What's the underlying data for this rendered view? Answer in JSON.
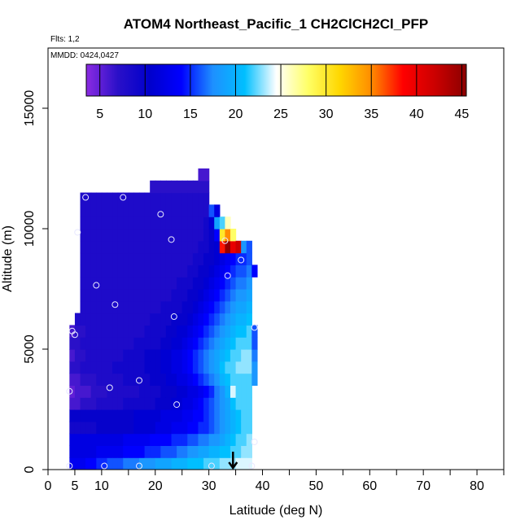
{
  "chart_data": {
    "type": "heatmap",
    "title": "ATOM4 Northeast_Pacific_1 CH2ClCH2Cl_PFP",
    "flights_note": "Flts: 1,2",
    "date_note": "MMDD: 0424,0427",
    "xlabel": "Latitude (deg N)",
    "ylabel": "Altitude (m)",
    "xlim": [
      0,
      85
    ],
    "ylim": [
      0,
      17500
    ],
    "x_ticks": [
      0,
      5,
      10,
      20,
      30,
      40,
      50,
      60,
      70,
      80
    ],
    "x_minor_ticks": [
      15,
      25,
      35,
      45,
      55,
      65,
      75,
      85
    ],
    "y_ticks": [
      0,
      5000,
      10000,
      15000
    ],
    "colorbar": {
      "range": [
        3.5,
        45.5
      ],
      "ticks": [
        5,
        10,
        15,
        20,
        25,
        30,
        35,
        40,
        45
      ],
      "stops": [
        "#8B2BE2",
        "#2A10C8",
        "#0000CC",
        "#0000FF",
        "#1E90FF",
        "#00BFFF",
        "#FFFFFF",
        "#FFFF66",
        "#FFD700",
        "#FF8C00",
        "#FF0000",
        "#CC0000",
        "#8B0000"
      ]
    },
    "field": {
      "lat_edges": [
        4,
        5,
        6,
        7,
        8,
        9,
        10,
        11,
        12,
        13,
        14,
        15,
        16,
        17,
        18,
        19,
        20,
        21,
        22,
        23,
        24,
        25,
        26,
        27,
        28,
        29,
        30,
        31,
        32,
        33,
        34,
        35,
        36,
        37,
        38,
        39
      ],
      "alt_edges": [
        0,
        500,
        1000,
        1500,
        2000,
        2500,
        3000,
        3500,
        4000,
        4500,
        5000,
        5500,
        6000,
        6500,
        7000,
        7500,
        8000,
        8500,
        9000,
        9500,
        10000,
        10500,
        11000,
        11500,
        12000,
        12500
      ],
      "columns": [
        [
          13,
          12,
          12,
          9,
          10,
          6,
          5,
          6,
          7,
          6,
          7,
          6,
          null,
          null,
          null,
          null,
          null,
          null,
          null,
          null,
          null,
          null,
          null,
          null,
          null
        ],
        [
          13,
          12,
          12,
          9,
          10,
          6,
          6,
          6,
          7,
          7,
          7,
          7,
          8,
          null,
          null,
          null,
          null,
          null,
          null,
          null,
          null,
          null,
          null,
          null,
          null
        ],
        [
          13,
          12,
          12,
          9,
          10,
          7,
          6,
          7,
          8,
          7,
          8,
          7,
          8,
          8,
          8,
          8,
          8,
          8,
          8,
          8,
          8,
          8,
          8,
          null,
          null
        ],
        [
          14,
          12,
          12,
          9,
          10,
          7,
          6,
          7,
          8,
          8,
          8,
          8,
          8,
          8,
          8,
          8,
          8,
          8,
          8,
          8,
          8,
          8,
          8,
          null,
          null
        ],
        [
          14,
          12,
          12,
          9,
          10,
          7,
          7,
          7,
          8,
          8,
          8,
          8,
          8,
          8,
          8,
          8,
          8,
          8,
          8,
          8,
          8,
          8,
          8,
          null,
          null
        ],
        [
          15,
          13,
          12,
          10,
          10,
          8,
          7,
          8,
          8,
          8,
          8,
          8,
          8,
          8,
          8,
          8,
          8,
          8,
          8,
          8,
          8,
          8,
          8,
          null,
          null
        ],
        [
          15,
          13,
          12,
          10,
          10,
          8,
          7,
          8,
          8,
          8,
          8,
          8,
          8,
          8,
          8,
          8,
          8,
          8,
          8,
          8,
          8,
          8,
          8,
          null,
          null
        ],
        [
          16,
          13,
          12,
          10,
          10,
          8,
          8,
          8,
          8,
          8,
          8,
          8,
          8,
          8,
          8,
          8,
          8,
          8,
          8,
          8,
          8,
          8,
          8,
          null,
          null
        ],
        [
          16,
          13,
          12,
          10,
          10,
          8,
          8,
          8,
          9,
          8,
          8,
          8,
          8,
          8,
          8,
          8,
          8,
          8,
          8,
          8,
          8,
          8,
          8,
          null,
          null
        ],
        [
          16,
          13,
          12,
          10,
          10,
          8,
          8,
          8,
          9,
          8,
          8,
          8,
          8,
          8,
          8,
          8,
          8,
          8,
          8,
          8,
          8,
          8,
          8,
          null,
          null
        ],
        [
          17,
          14,
          13,
          10,
          10,
          9,
          8,
          9,
          9,
          9,
          8,
          8,
          8,
          8,
          8,
          8,
          8,
          8,
          8,
          8,
          8,
          8,
          8,
          null,
          null
        ],
        [
          17,
          14,
          13,
          10,
          10,
          9,
          8,
          9,
          9,
          9,
          8,
          8,
          8,
          8,
          8,
          8,
          8,
          8,
          8,
          8,
          8,
          8,
          8,
          null,
          null
        ],
        [
          17,
          14,
          13,
          11,
          11,
          9,
          8,
          9,
          9,
          9,
          9,
          8,
          8,
          8,
          8,
          8,
          8,
          8,
          8,
          8,
          8,
          8,
          8,
          null,
          null
        ],
        [
          18,
          14,
          13,
          11,
          11,
          9,
          9,
          9,
          9,
          9,
          9,
          8,
          8,
          8,
          8,
          8,
          8,
          8,
          8,
          8,
          8,
          8,
          8,
          null,
          null
        ],
        [
          18,
          15,
          13,
          11,
          11,
          9,
          9,
          9,
          10,
          10,
          9,
          9,
          8,
          8,
          8,
          8,
          8,
          8,
          8,
          8,
          8,
          8,
          8,
          null,
          null
        ],
        [
          18,
          15,
          14,
          11,
          11,
          9,
          9,
          10,
          10,
          10,
          9,
          9,
          9,
          8,
          8,
          8,
          8,
          8,
          8,
          8,
          8,
          8,
          8,
          7,
          null
        ],
        [
          19,
          15,
          14,
          12,
          11,
          10,
          9,
          10,
          10,
          10,
          9,
          9,
          9,
          8,
          8,
          8,
          8,
          8,
          8,
          8,
          8,
          8,
          8,
          7,
          null
        ],
        [
          19,
          16,
          14,
          12,
          12,
          10,
          10,
          10,
          11,
          11,
          10,
          9,
          9,
          9,
          8,
          8,
          8,
          8,
          8,
          8,
          8,
          8,
          8,
          7,
          null
        ],
        [
          19,
          16,
          14,
          12,
          12,
          10,
          10,
          11,
          11,
          11,
          10,
          10,
          9,
          9,
          8,
          8,
          8,
          8,
          8,
          8,
          8,
          8,
          8,
          7,
          null
        ],
        [
          20,
          16,
          15,
          13,
          12,
          11,
          10,
          11,
          12,
          12,
          11,
          10,
          10,
          9,
          9,
          8,
          8,
          8,
          8,
          8,
          8,
          8,
          8,
          7,
          null
        ],
        [
          20,
          17,
          15,
          13,
          12,
          11,
          11,
          12,
          12,
          12,
          11,
          11,
          10,
          9,
          9,
          9,
          8,
          8,
          8,
          8,
          8,
          8,
          8,
          7,
          null
        ],
        [
          20,
          17,
          15,
          13,
          13,
          12,
          11,
          12,
          13,
          13,
          12,
          11,
          10,
          10,
          9,
          9,
          8,
          8,
          8,
          8,
          8,
          8,
          8,
          7,
          null
        ],
        [
          21,
          18,
          16,
          14,
          13,
          12,
          12,
          13,
          14,
          14,
          13,
          12,
          11,
          10,
          10,
          9,
          9,
          8,
          8,
          8,
          8,
          8,
          8,
          7,
          null
        ],
        [
          21,
          18,
          16,
          14,
          14,
          13,
          12,
          14,
          15,
          15,
          14,
          13,
          12,
          11,
          10,
          10,
          9,
          9,
          8,
          8,
          8,
          8,
          8,
          7,
          null
        ],
        [
          21,
          19,
          17,
          15,
          14,
          14,
          13,
          15,
          16,
          16,
          15,
          14,
          13,
          12,
          11,
          10,
          10,
          9,
          9,
          8,
          8,
          8,
          8,
          7,
          6
        ],
        [
          22,
          19,
          17,
          15,
          15,
          15,
          14,
          16,
          17,
          17,
          16,
          15,
          14,
          13,
          12,
          11,
          10,
          10,
          9,
          9,
          9,
          8,
          8,
          7,
          6
        ],
        [
          22,
          20,
          18,
          16,
          16,
          16,
          15,
          17,
          18,
          18,
          17,
          16,
          15,
          14,
          13,
          12,
          11,
          10,
          10,
          10,
          11,
          16,
          null,
          null,
          null
        ],
        [
          22,
          20,
          18,
          17,
          17,
          17,
          17,
          18,
          19,
          19,
          18,
          17,
          16,
          15,
          14,
          13,
          12,
          11,
          11,
          14,
          19,
          12,
          null,
          null,
          null
        ],
        [
          23,
          21,
          19,
          18,
          18,
          18,
          18,
          20,
          21,
          20,
          19,
          18,
          17,
          16,
          15,
          14,
          13,
          12,
          38,
          30,
          22,
          null,
          null,
          null,
          null
        ],
        [
          23,
          21,
          20,
          19,
          19,
          19,
          20,
          21,
          22,
          21,
          20,
          19,
          18,
          17,
          16,
          15,
          14,
          13,
          45,
          35,
          26,
          null,
          null,
          null,
          null
        ],
        [
          23,
          22,
          21,
          20,
          20,
          21,
          24,
          22,
          22,
          22,
          21,
          20,
          19,
          18,
          17,
          16,
          15,
          14,
          40,
          28,
          null,
          null,
          null,
          null,
          null
        ],
        [
          24,
          22,
          22,
          21,
          21,
          22,
          22,
          22,
          23,
          22,
          22,
          21,
          20,
          19,
          18,
          17,
          16,
          15,
          42,
          null,
          null,
          null,
          null,
          null,
          null
        ],
        [
          24,
          23,
          22,
          22,
          22,
          22,
          22,
          22,
          23,
          23,
          22,
          21,
          20,
          19,
          18,
          17,
          16,
          15,
          18,
          null,
          null,
          null,
          null,
          null,
          null
        ],
        [
          24,
          23,
          23,
          22,
          22,
          22,
          22,
          22,
          23,
          23,
          22,
          22,
          21,
          20,
          19,
          18,
          17,
          16,
          16,
          null,
          null,
          null,
          null,
          null,
          null
        ],
        [
          null,
          null,
          null,
          null,
          null,
          null,
          null,
          18,
          18,
          17,
          16,
          16,
          null,
          null,
          null,
          null,
          14,
          null,
          null,
          null,
          null,
          null,
          null,
          null,
          null
        ]
      ]
    },
    "samples": {
      "lat": [
        4,
        4,
        4.5,
        5,
        5.5,
        7,
        9,
        10.5,
        11.5,
        12.5,
        14,
        17,
        17,
        21,
        23,
        23.5,
        24,
        30.5,
        33,
        33.5,
        36,
        38,
        38.5,
        38.5
      ],
      "alt": [
        150,
        3250,
        5750,
        5600,
        9850,
        11300,
        7650,
        150,
        3400,
        6850,
        11300,
        3700,
        150,
        10600,
        9550,
        6350,
        2700,
        150,
        9500,
        8050,
        8700,
        150,
        1150,
        5900
      ]
    },
    "marker_lat": 34.5
  }
}
